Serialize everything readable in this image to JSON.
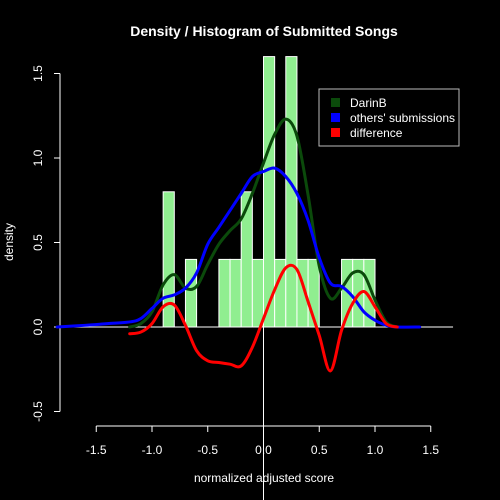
{
  "chart_data": {
    "type": "area",
    "title": "Density / Histogram of Submitted Songs",
    "xlabel": "normalized adjusted score",
    "ylabel": "density",
    "xlim": [
      -1.85,
      1.7
    ],
    "ylim": [
      -0.55,
      1.62
    ],
    "x_ticks": [
      -1.5,
      -1.0,
      -0.5,
      0.0,
      0.5,
      1.0,
      1.5
    ],
    "x_tick_labels": [
      "-1.5",
      "-1.0",
      "-0.5",
      "0.0",
      "0.5",
      "1.0",
      "1.5"
    ],
    "y_ticks": [
      -0.5,
      0.0,
      0.5,
      1.0,
      1.5
    ],
    "y_tick_labels": [
      "-0.5",
      "0.0",
      "0.5",
      "1.0",
      "1.5"
    ],
    "grid": false,
    "legend_position": "top-right",
    "histogram": {
      "color": "#90ee90",
      "bins": [
        {
          "x0": -0.9,
          "x1": -0.8,
          "height": 0.8
        },
        {
          "x0": -0.7,
          "x1": -0.6,
          "height": 0.4
        },
        {
          "x0": -0.4,
          "x1": -0.3,
          "height": 0.4
        },
        {
          "x0": -0.3,
          "x1": -0.2,
          "height": 0.4
        },
        {
          "x0": -0.2,
          "x1": -0.1,
          "height": 0.8
        },
        {
          "x0": -0.1,
          "x1": 0.0,
          "height": 0.4
        },
        {
          "x0": 0.0,
          "x1": 0.1,
          "height": 1.6
        },
        {
          "x0": 0.1,
          "x1": 0.2,
          "height": 0.4
        },
        {
          "x0": 0.2,
          "x1": 0.3,
          "height": 1.6
        },
        {
          "x0": 0.3,
          "x1": 0.4,
          "height": 0.4
        },
        {
          "x0": 0.4,
          "x1": 0.5,
          "height": 0.4
        },
        {
          "x0": 0.7,
          "x1": 0.8,
          "height": 0.4
        },
        {
          "x0": 0.8,
          "x1": 0.9,
          "height": 0.4
        },
        {
          "x0": 0.9,
          "x1": 1.0,
          "height": 0.4
        }
      ]
    },
    "series": [
      {
        "name": "DarinB",
        "color": "#0b4a0b",
        "x": [
          -1.2,
          -1.1,
          -1.0,
          -0.9,
          -0.8,
          -0.7,
          -0.6,
          -0.5,
          -0.4,
          -0.3,
          -0.2,
          -0.1,
          0.0,
          0.1,
          0.2,
          0.3,
          0.4,
          0.5,
          0.6,
          0.7,
          0.8,
          0.9,
          1.0,
          1.1,
          1.2
        ],
        "y": [
          0.0,
          0.02,
          0.09,
          0.25,
          0.31,
          0.23,
          0.24,
          0.37,
          0.49,
          0.57,
          0.64,
          0.79,
          0.97,
          1.14,
          1.23,
          1.13,
          0.78,
          0.36,
          0.17,
          0.23,
          0.32,
          0.31,
          0.16,
          0.03,
          0.0
        ]
      },
      {
        "name": "others' submissions",
        "color": "#0000ff",
        "x": [
          -1.85,
          -1.6,
          -1.4,
          -1.2,
          -1.1,
          -1.0,
          -0.9,
          -0.8,
          -0.7,
          -0.6,
          -0.5,
          -0.4,
          -0.3,
          -0.2,
          -0.1,
          0.0,
          0.1,
          0.2,
          0.3,
          0.4,
          0.5,
          0.6,
          0.7,
          0.8,
          0.9,
          1.0,
          1.1,
          1.2,
          1.4
        ],
        "y": [
          0.0,
          0.01,
          0.02,
          0.03,
          0.05,
          0.11,
          0.17,
          0.19,
          0.23,
          0.32,
          0.49,
          0.59,
          0.69,
          0.79,
          0.89,
          0.92,
          0.94,
          0.89,
          0.79,
          0.63,
          0.41,
          0.26,
          0.24,
          0.18,
          0.09,
          0.04,
          0.01,
          0.0,
          0.0
        ]
      },
      {
        "name": "difference",
        "color": "#ff0000",
        "x": [
          -1.2,
          -1.1,
          -1.0,
          -0.9,
          -0.8,
          -0.7,
          -0.6,
          -0.5,
          -0.4,
          -0.3,
          -0.2,
          -0.1,
          0.0,
          0.1,
          0.2,
          0.3,
          0.4,
          0.5,
          0.6,
          0.7,
          0.8,
          0.9,
          1.0,
          1.1,
          1.2
        ],
        "y": [
          -0.04,
          -0.03,
          0.02,
          0.12,
          0.13,
          0.01,
          -0.14,
          -0.2,
          -0.21,
          -0.22,
          -0.23,
          -0.12,
          0.05,
          0.22,
          0.35,
          0.34,
          0.15,
          -0.05,
          -0.26,
          -0.02,
          0.14,
          0.21,
          0.12,
          0.02,
          0.0
        ]
      }
    ]
  }
}
